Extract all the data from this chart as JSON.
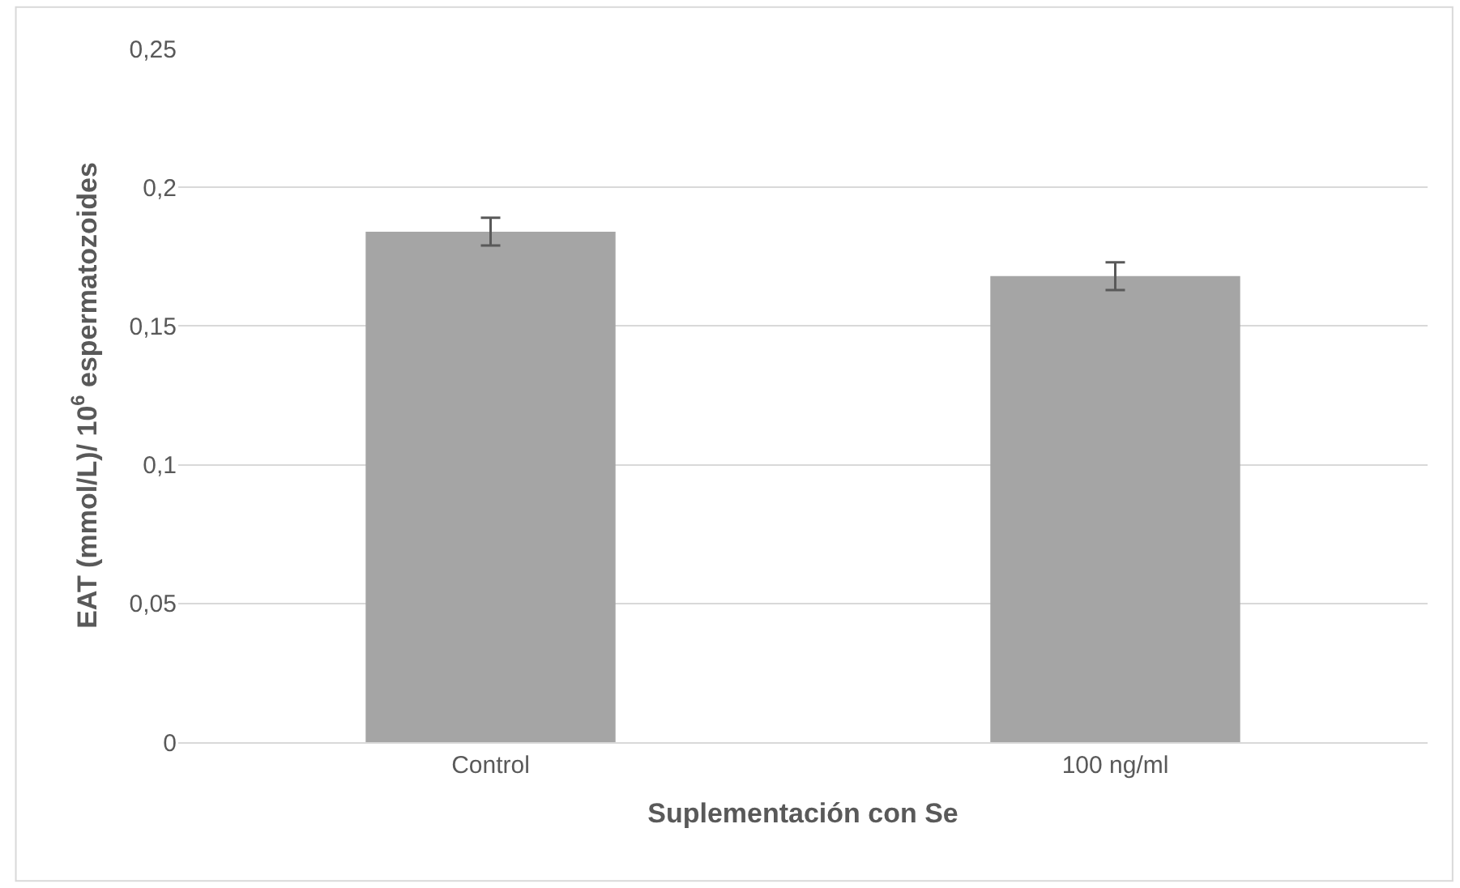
{
  "chart_data": {
    "type": "bar",
    "xlabel": "Suplementación con Se",
    "ylabel": "EAT (mmol/L)/ 10$^{6}$ espermatozoides",
    "categories": [
      "Control",
      "100 ng/ml"
    ],
    "values": [
      0.184,
      0.168
    ],
    "errors": [
      0.005,
      0.005
    ],
    "color": "#a5a5a5",
    "ylim": [
      0,
      0.25
    ],
    "yticks": [
      {
        "value": 0,
        "label": "0"
      },
      {
        "value": 0.05,
        "label": "0,05"
      },
      {
        "value": 0.1,
        "label": "0,1"
      },
      {
        "value": 0.15,
        "label": "0,15"
      },
      {
        "value": 0.2,
        "label": "0,2"
      },
      {
        "value": 0.25,
        "label": "0,25"
      }
    ],
    "grid": "y",
    "legend": false
  }
}
